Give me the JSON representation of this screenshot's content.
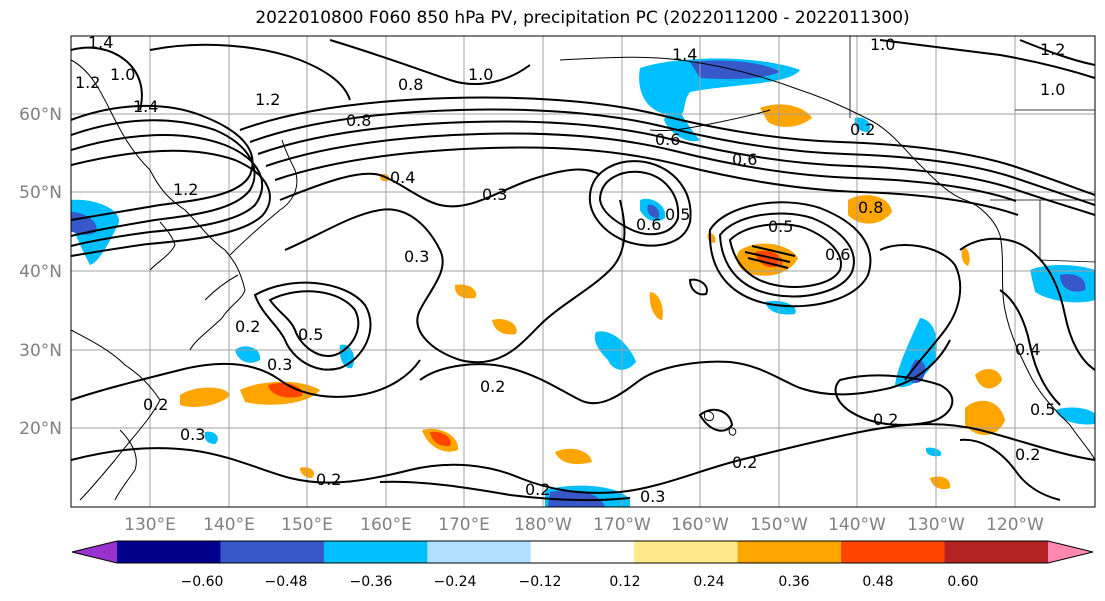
{
  "title": "2022010800 F060 850 hPa PV, precipitation PC (2022011200 - 2022011300)",
  "map": {
    "lat_labels": [
      "60°N",
      "50°N",
      "40°N",
      "30°N",
      "20°N"
    ],
    "lon_labels": [
      "130°E",
      "140°E",
      "150°E",
      "160°E",
      "170°E",
      "180°W",
      "170°W",
      "160°W",
      "150°W",
      "140°W",
      "130°W",
      "120°W"
    ],
    "contour_labels": [
      "1.4",
      "1.2",
      "1.0",
      "1.4",
      "1.0",
      "1.2",
      "0.8",
      "0.8",
      "1.4",
      "1.0",
      "1.2",
      "0.4",
      "0.3",
      "0.5",
      "0.6",
      "0.8",
      "0.6",
      "0.5",
      "0.3",
      "0.2",
      "0.5",
      "0.3",
      "0.2",
      "0.3",
      "0.2",
      "0.2",
      "0.2",
      "0.2",
      "0.3",
      "0.2",
      "0.4",
      "0.5",
      "0.2",
      "0.2",
      "1.0",
      "1.2",
      "0.6",
      "0.6"
    ]
  },
  "colorbar": {
    "ticks": [
      "−0.60",
      "−0.48",
      "−0.36",
      "−0.24",
      "−0.12",
      "0.12",
      "0.24",
      "0.36",
      "0.48",
      "0.60"
    ],
    "colors": [
      "#9932cc",
      "#00008b",
      "#3658c8",
      "#00bfff",
      "#b0e0ff",
      "#ffffff",
      "#ffe98a",
      "#ffa500",
      "#ff4500",
      "#b22222",
      "#ff88b0"
    ]
  }
}
